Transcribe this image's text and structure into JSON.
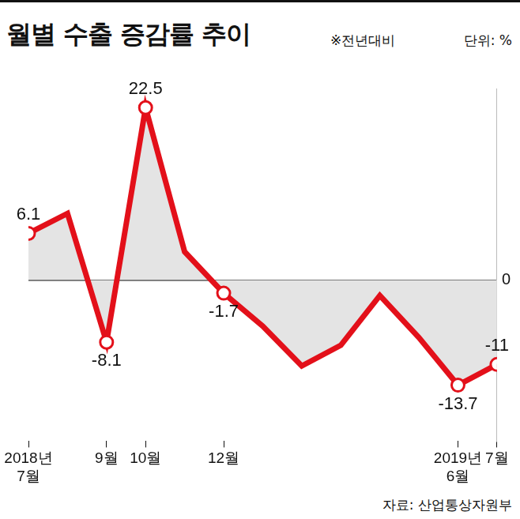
{
  "chart_data": {
    "type": "line",
    "title": "월별 수출 증감률 추이",
    "subtitle": "※전년대비",
    "unit": "단위: %",
    "source": "자료: 산업통상자원부",
    "categories": [
      "2018년 7월",
      null,
      "9월",
      "10월",
      null,
      "12월",
      null,
      null,
      null,
      null,
      null,
      "2019년 6월",
      "7월"
    ],
    "values": [
      6.1,
      8.7,
      -8.1,
      22.5,
      3.7,
      -1.7,
      -6.0,
      -11.2,
      -8.5,
      -2.0,
      -7.5,
      -13.7,
      -11
    ],
    "value_labels": [
      "6.1",
      null,
      "-8.1",
      "22.5",
      null,
      "-1.7",
      null,
      null,
      null,
      null,
      null,
      "-13.7",
      "-11"
    ],
    "color": "#e3101a",
    "marker": "circle",
    "ylim": [
      -21,
      25
    ],
    "yticks": [
      0
    ],
    "grid": true
  }
}
